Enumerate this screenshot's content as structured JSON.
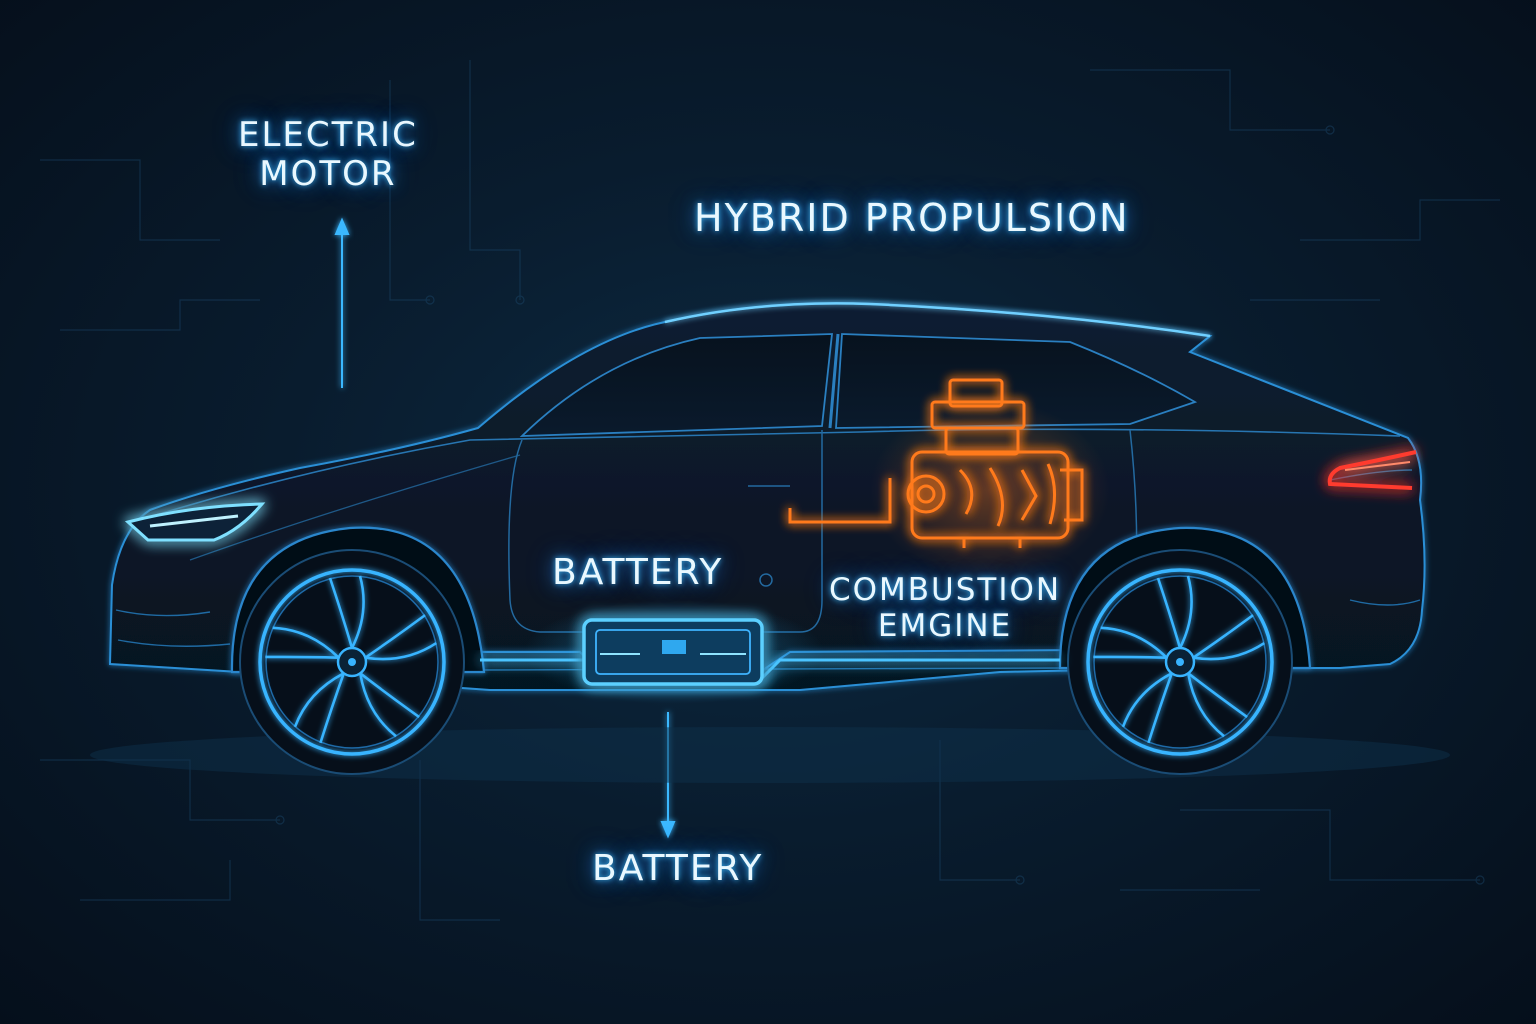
{
  "diagram": {
    "title": "HYBRID PROPULSION",
    "labels": {
      "electric_motor": [
        "ELECTRIC",
        "MOTOR"
      ],
      "battery_inside": "BATTERY",
      "battery_below": "BATTERY",
      "combustion_engine": [
        "COMBUSTION",
        "EMGINE"
      ]
    },
    "colors": {
      "background": "#07182a",
      "electric_glow": "#2fb6ff",
      "combustion_glow": "#ff7a1a",
      "tail_light": "#ff3b2f",
      "label_text": "#e9f8ff"
    },
    "components": {
      "car": "car-silhouette",
      "headlight": "headlight-icon",
      "tail_light": "tail-light-icon",
      "battery_pack": "battery-pack-icon",
      "engine": "engine-icon",
      "wheels": "wheel-icon"
    }
  }
}
